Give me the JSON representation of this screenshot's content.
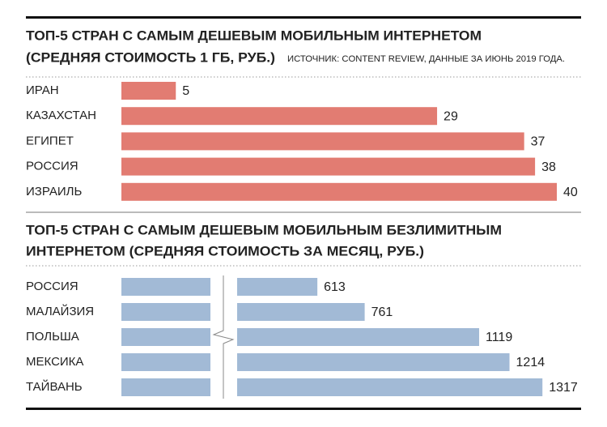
{
  "chart_data": [
    {
      "type": "bar",
      "orientation": "horizontal",
      "title": "ТОП-5 СТРАН С САМЫМ ДЕШЕВЫМ МОБИЛЬНЫМ ИНТЕРНЕТОМ",
      "subtitle": "(СРЕДНЯЯ СТОИМОСТЬ 1 ГБ, РУБ.)",
      "source": "ИСТОЧНИК: CONTENT REVIEW, ДАННЫЕ ЗА ИЮНЬ 2019 ГОДА.",
      "categories": [
        "ИРАН",
        "КАЗАХСТАН",
        "ЕГИПЕТ",
        "РОССИЯ",
        "ИЗРАИЛЬ"
      ],
      "values": [
        5,
        29,
        37,
        38,
        40
      ],
      "color": "#e27c72"
    },
    {
      "type": "bar",
      "orientation": "horizontal",
      "axis_break": true,
      "title_lines": [
        "ТОП-5 СТРАН С САМЫМ ДЕШЕВЫМ МОБИЛЬНЫМ БЕЗЛИМИТНЫМ",
        "ИНТЕРНЕТОМ (СРЕДНЯЯ СТОИМОСТЬ ЗА МЕСЯЦ, РУБ.)"
      ],
      "categories": [
        "РОССИЯ",
        "МАЛАЙЗИЯ",
        "ПОЛЬША",
        "МЕКСИКА",
        "ТАЙВАНЬ"
      ],
      "values": [
        613,
        761,
        1119,
        1214,
        1317
      ],
      "color": "#a2bad6"
    }
  ]
}
